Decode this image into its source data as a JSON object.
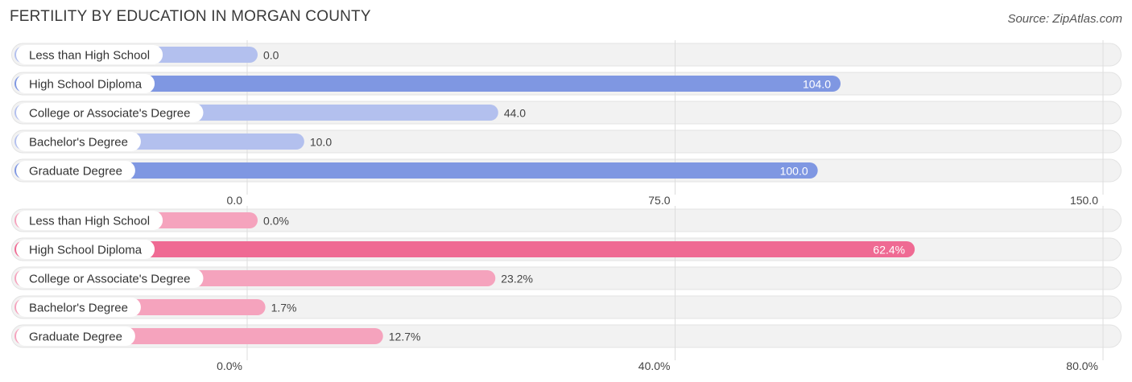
{
  "title": "FERTILITY BY EDUCATION IN MORGAN COUNTY",
  "source": "Source: ZipAtlas.com",
  "chart_data": [
    {
      "type": "bar",
      "orientation": "horizontal",
      "categories": [
        "Less than High School",
        "High School Diploma",
        "College or Associate's Degree",
        "Bachelor's Degree",
        "Graduate Degree"
      ],
      "values": [
        0.0,
        104.0,
        44.0,
        10.0,
        100.0
      ],
      "value_labels": [
        "0.0",
        "104.0",
        "44.0",
        "10.0",
        "100.0"
      ],
      "xlim": [
        0,
        150
      ],
      "ticks": [
        0,
        75,
        150
      ],
      "tick_labels": [
        "0.0",
        "75.0",
        "150.0"
      ],
      "colors": {
        "strong": "#7f97e2",
        "light": "#b3c0ee",
        "track": "#efefef"
      },
      "grid": true
    },
    {
      "type": "bar",
      "orientation": "horizontal",
      "categories": [
        "Less than High School",
        "High School Diploma",
        "College or Associate's Degree",
        "Bachelor's Degree",
        "Graduate Degree"
      ],
      "values": [
        0.0,
        62.4,
        23.2,
        1.7,
        12.7
      ],
      "value_labels": [
        "0.0%",
        "62.4%",
        "23.2%",
        "1.7%",
        "12.7%"
      ],
      "xlim": [
        0,
        80
      ],
      "ticks": [
        0,
        40,
        80
      ],
      "tick_labels": [
        "0.0%",
        "40.0%",
        "80.0%"
      ],
      "colors": {
        "strong": "#ef6a93",
        "light": "#f5a3bd",
        "track": "#efefef"
      },
      "grid": true
    }
  ]
}
